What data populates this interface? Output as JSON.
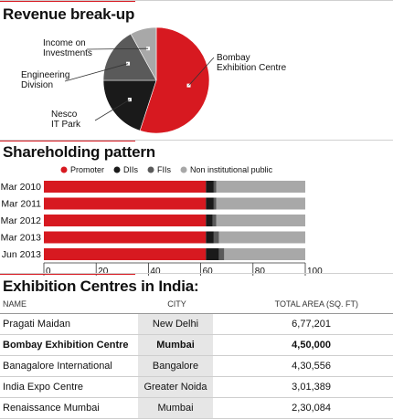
{
  "revenue": {
    "title": "Revenue break-up",
    "chart_data": {
      "type": "pie",
      "title": "Revenue break-up",
      "slices": [
        {
          "label_lines": [
            "Bombay",
            "Exhibition Centre"
          ],
          "value": 55,
          "color": "#d71920"
        },
        {
          "label_lines": [
            "Nesco",
            "IT Park"
          ],
          "value": 20,
          "color": "#1a1a1a"
        },
        {
          "label_lines": [
            "Engineering",
            "Division"
          ],
          "value": 17,
          "color": "#5a5a5a"
        },
        {
          "label_lines": [
            "Income on",
            "Investments"
          ],
          "value": 8,
          "color": "#a8a8a8"
        }
      ]
    }
  },
  "shareholding": {
    "title": "Shareholding pattern",
    "chart_data": {
      "type": "bar",
      "orientation": "horizontal",
      "stacked": true,
      "title": "Shareholding pattern",
      "categories": [
        "Mar 2010",
        "Mar 2011",
        "Mar 2012",
        "Mar 2013",
        "Jun 2013"
      ],
      "series": [
        {
          "name": "Promoter",
          "color": "#d71920",
          "values": [
            62,
            62,
            62,
            62,
            62
          ]
        },
        {
          "name": "DIIs",
          "color": "#1a1a1a",
          "values": [
            3,
            3,
            2.5,
            3,
            5
          ]
        },
        {
          "name": "FIIs",
          "color": "#5a5a5a",
          "values": [
            1,
            1,
            1.5,
            2,
            2
          ]
        },
        {
          "name": "Non institutional public",
          "color": "#a8a8a8",
          "values": [
            34,
            34,
            34,
            33,
            31
          ]
        }
      ],
      "xlim": [
        0,
        100
      ],
      "xticks": [
        0,
        20,
        40,
        60,
        80,
        100
      ],
      "legend": "top"
    }
  },
  "exhibition": {
    "title": "Exhibition Centres in India:",
    "columns": {
      "name": "NAME",
      "city": "CITY",
      "area": "TOTAL AREA (SQ. FT)"
    },
    "rows": [
      {
        "name": "Pragati Maidan",
        "city": "New Delhi",
        "area": "6,77,201",
        "bold": false
      },
      {
        "name": "Bombay Exhibition Centre",
        "city": "Mumbai",
        "area": "4,50,000",
        "bold": true
      },
      {
        "name": "Banagalore International",
        "city": "Bangalore",
        "area": "4,30,556",
        "bold": false
      },
      {
        "name": "India Expo Centre",
        "city": "Greater Noida",
        "area": "3,01,389",
        "bold": false
      },
      {
        "name": "Renaissance Mumbai",
        "city": "Mumbai",
        "area": "2,30,084",
        "bold": false
      }
    ]
  }
}
